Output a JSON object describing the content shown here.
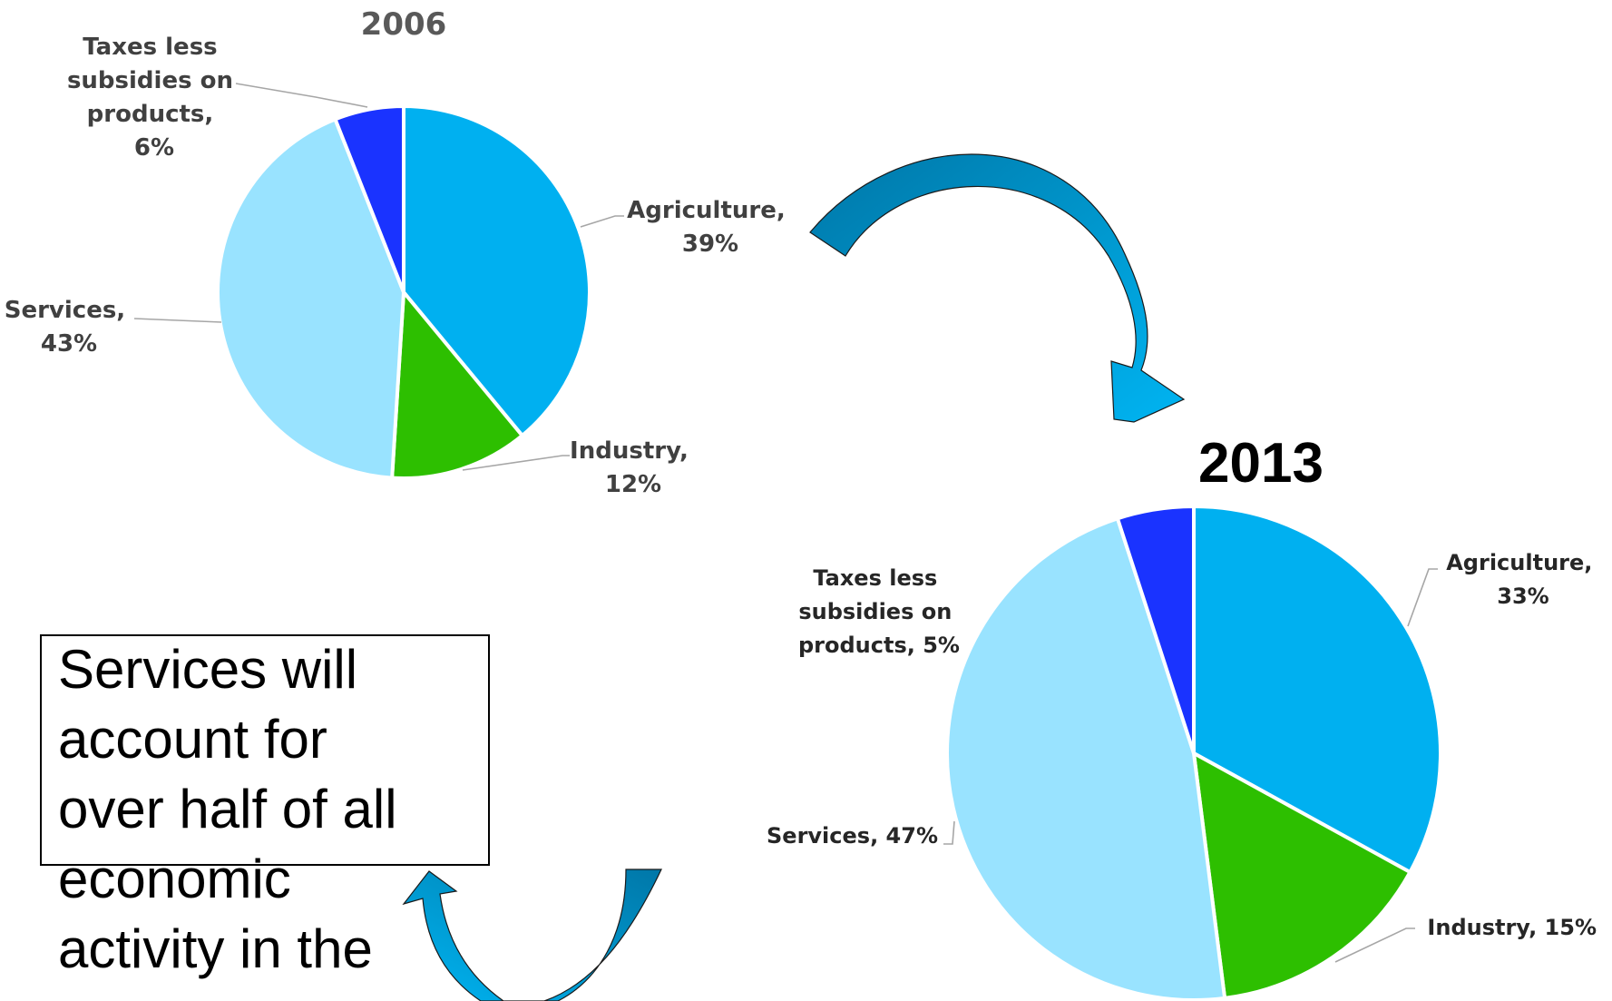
{
  "chart_data": [
    {
      "type": "pie",
      "title": "2006",
      "slices": [
        {
          "label": "Agriculture, 39%",
          "name": "Agriculture",
          "value": 39,
          "color": "#00b0f0"
        },
        {
          "label": "Industry, 12%",
          "name": "Industry",
          "value": 12,
          "color": "#2dbf00"
        },
        {
          "label": "Services, 43%",
          "name": "Services",
          "value": 43,
          "color": "#99e3ff"
        },
        {
          "label": "Taxes less subsidies on products, 6%",
          "name": "Taxes less subsidies on products",
          "value": 6,
          "color": "#1a33ff"
        }
      ]
    },
    {
      "type": "pie",
      "title": "2013",
      "slices": [
        {
          "label": "Agriculture, 33%",
          "name": "Agriculture",
          "value": 33,
          "color": "#00b0f0"
        },
        {
          "label": "Industry, 15%",
          "name": "Industry",
          "value": 15,
          "color": "#2dbf00"
        },
        {
          "label": "Services, 47%",
          "name": "Services",
          "value": 47,
          "color": "#99e3ff"
        },
        {
          "label": "Taxes less subsidies on products, 5%",
          "name": "Taxes less subsidies on products",
          "value": 5,
          "color": "#1a33ff"
        }
      ]
    }
  ],
  "labels_2006": {
    "taxes": [
      "Taxes less",
      "subsidies on",
      "products,",
      "6%"
    ],
    "agriculture": [
      "Agriculture,",
      "39%"
    ],
    "industry": [
      "Industry,",
      "12%"
    ],
    "services": [
      "Services,",
      "43%"
    ]
  },
  "labels_2013": {
    "taxes": [
      "Taxes less",
      "subsidies on",
      "products, 5%"
    ],
    "agriculture": [
      "Agriculture,",
      "33%"
    ],
    "industry": [
      "Industry, 15%"
    ],
    "services": [
      "Services, 47%"
    ]
  },
  "note": {
    "lines": [
      "Services will",
      "account for",
      "over half of all",
      "economic",
      "activity in the"
    ]
  },
  "colors": {
    "arrow_dark": "#0086b8",
    "arrow_light": "#00b0f0"
  }
}
